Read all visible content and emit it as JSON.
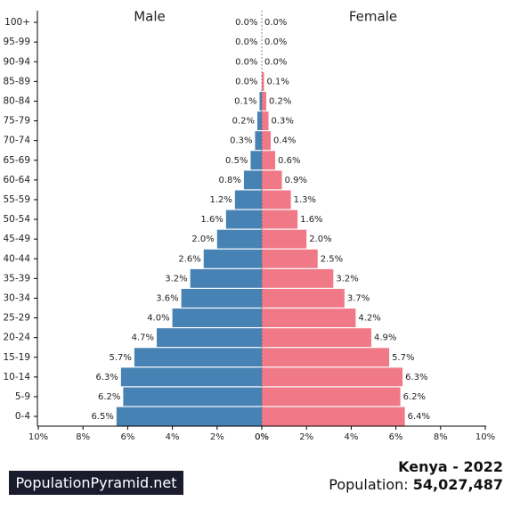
{
  "chart_data": {
    "type": "bar",
    "orientation": "horizontal-pyramid",
    "categories": [
      "0-4",
      "5-9",
      "10-14",
      "15-19",
      "20-24",
      "25-29",
      "30-34",
      "35-39",
      "40-44",
      "45-49",
      "50-54",
      "55-59",
      "60-64",
      "65-69",
      "70-74",
      "75-79",
      "80-84",
      "85-89",
      "90-94",
      "95-99",
      "100+"
    ],
    "series": [
      {
        "name": "Male",
        "color": "#4682b4",
        "values": [
          6.5,
          6.2,
          6.3,
          5.7,
          4.7,
          4.0,
          3.6,
          3.2,
          2.6,
          2.0,
          1.6,
          1.2,
          0.8,
          0.5,
          0.3,
          0.2,
          0.1,
          0.0,
          0.0,
          0.0,
          0.0
        ]
      },
      {
        "name": "Female",
        "color": "#f07987",
        "values": [
          6.4,
          6.2,
          6.3,
          5.7,
          4.9,
          4.2,
          3.7,
          3.2,
          2.5,
          2.0,
          1.6,
          1.3,
          0.9,
          0.6,
          0.4,
          0.3,
          0.2,
          0.1,
          0.0,
          0.0,
          0.0
        ]
      }
    ],
    "value_labels": {
      "male": [
        "6.5%",
        "6.2%",
        "6.3%",
        "5.7%",
        "4.7%",
        "4.0%",
        "3.6%",
        "3.2%",
        "2.6%",
        "2.0%",
        "1.6%",
        "1.2%",
        "0.8%",
        "0.5%",
        "0.3%",
        "0.2%",
        "0.1%",
        "0.0%",
        "0.0%",
        "0.0%",
        "0.0%"
      ],
      "female": [
        "6.4%",
        "6.2%",
        "6.3%",
        "5.7%",
        "4.9%",
        "4.2%",
        "3.7%",
        "3.2%",
        "2.5%",
        "2.0%",
        "1.6%",
        "1.3%",
        "0.9%",
        "0.6%",
        "0.4%",
        "0.3%",
        "0.2%",
        "0.1%",
        "0.0%",
        "0.0%",
        "0.0%"
      ]
    },
    "x_ticks_left": [
      "10%",
      "8%",
      "6%",
      "4%",
      "2%",
      "0%"
    ],
    "x_ticks_right": [
      "0%",
      "2%",
      "4%",
      "6%",
      "8%",
      "10%"
    ],
    "xlim": [
      0,
      10
    ],
    "grid": false,
    "legend": "top"
  },
  "footer": {
    "brand": "PopulationPyramid.net",
    "country_year": "Kenya - 2022",
    "population_label": "Population: ",
    "population_value": "54,027,487"
  }
}
